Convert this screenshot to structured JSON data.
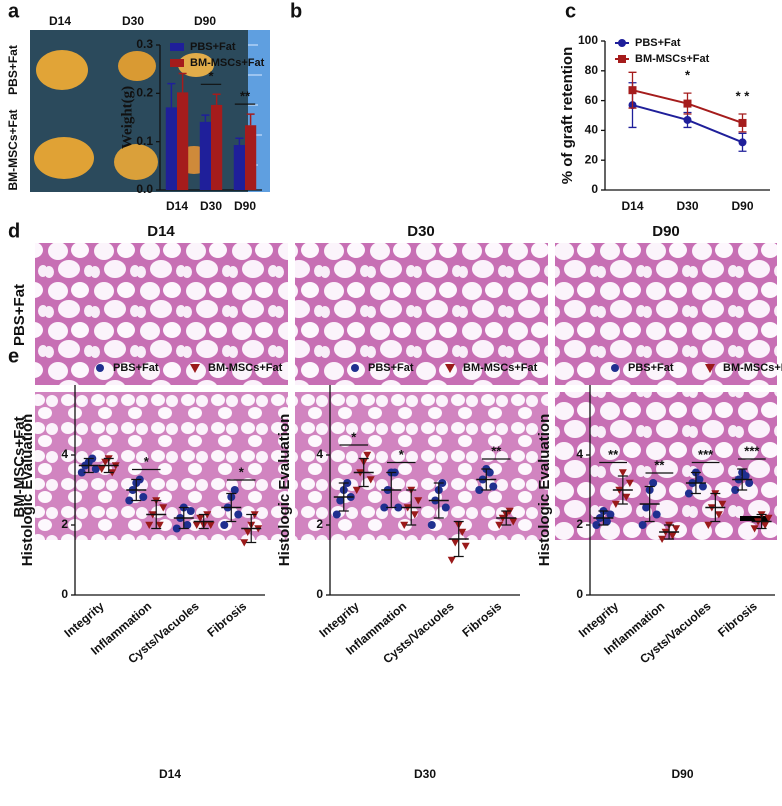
{
  "figure": {
    "panel_labels": [
      "a",
      "b",
      "c",
      "d",
      "e"
    ],
    "photo": {
      "columns": [
        "D14",
        "D30",
        "D90"
      ],
      "rows": [
        "PBS+Fat",
        "BM-MSCs+Fat"
      ]
    },
    "histology": {
      "columns": [
        "D14",
        "D30",
        "D90"
      ],
      "rows": [
        "PBS+Fat",
        "BM-MSCs+Fat"
      ]
    }
  },
  "chart_data": [
    {
      "type": "bar",
      "ylabel": "Weight(g)",
      "categories": [
        "D14",
        "D30",
        "D90"
      ],
      "series": [
        {
          "name": "PBS+Fat",
          "color": "#1f1f9a",
          "values": [
            0.171,
            0.141,
            0.093
          ],
          "error": [
            0.049,
            0.014,
            0.014
          ]
        },
        {
          "name": "BM-MSCs+Fat",
          "color": "#a51c1c",
          "values": [
            0.202,
            0.176,
            0.134
          ],
          "error": [
            0.039,
            0.022,
            0.023
          ]
        }
      ],
      "annotations": [
        null,
        "*",
        "**"
      ],
      "ylim": [
        0,
        0.3
      ],
      "yticks": [
        {
          "value": 0,
          "label": "0.0"
        },
        0.1,
        0.2,
        0.3
      ]
    },
    {
      "type": "line",
      "ylabel": "% of graft retention",
      "categories": [
        "D14",
        "D30",
        "D90"
      ],
      "series": [
        {
          "name": "PBS+Fat",
          "color": "#1f1f9a",
          "marker": "circle",
          "values": [
            57,
            47,
            32
          ],
          "error": [
            15,
            5,
            6
          ]
        },
        {
          "name": "BM-MSCs+Fat",
          "color": "#a51c1c",
          "marker": "square",
          "values": [
            67,
            58,
            45
          ],
          "error": [
            12,
            7,
            6
          ]
        }
      ],
      "annotations": [
        null,
        "*",
        "* *"
      ],
      "ylim": [
        0,
        100
      ],
      "yticks": [
        0,
        20,
        40,
        60,
        80,
        100
      ]
    },
    {
      "type": "dot",
      "xlabel": "D14",
      "ylabel": "Histologic Evaluation",
      "categories": [
        "Integrity",
        "Inflammation",
        "Cysts/Vacuoles",
        "Fibrosis"
      ],
      "series": [
        {
          "name": "PBS+Fat",
          "color": "#1f2f8f",
          "marker": "circle",
          "values": [
            [
              3.5,
              3.7,
              3.8,
              3.9,
              3.6
            ],
            [
              2.7,
              3.0,
              3.2,
              3.3,
              2.8
            ],
            [
              1.9,
              2.2,
              2.5,
              2.0,
              2.4
            ],
            [
              2.0,
              2.5,
              2.8,
              3.0,
              2.3
            ]
          ],
          "mean": [
            3.7,
            3.0,
            2.2,
            2.5
          ],
          "sd": [
            0.2,
            0.3,
            0.3,
            0.4
          ]
        },
        {
          "name": "BM-MSCs+Fat",
          "color": "#9a1a1a",
          "marker": "triangle",
          "values": [
            [
              3.6,
              3.8,
              3.9,
              3.5,
              3.7
            ],
            [
              2.0,
              2.3,
              2.7,
              2.0,
              2.5
            ],
            [
              2.0,
              2.2,
              2.0,
              2.3,
              2.0
            ],
            [
              1.5,
              1.8,
              2.0,
              2.3,
              1.9
            ]
          ],
          "mean": [
            3.7,
            2.3,
            2.1,
            1.9
          ],
          "sd": [
            0.2,
            0.4,
            0.2,
            0.4
          ]
        }
      ],
      "annotations": [
        null,
        "*",
        null,
        "*"
      ],
      "ylim": [
        0,
        6
      ],
      "yticks": [
        0,
        2,
        4
      ]
    },
    {
      "type": "dot",
      "xlabel": "D30",
      "ylabel": "Histologic Evaluation",
      "categories": [
        "Integrity",
        "Inflammation",
        "Cysts/Vacuoles",
        "Fibrosis"
      ],
      "series": [
        {
          "name": "PBS+Fat",
          "color": "#1f2f8f",
          "marker": "circle",
          "values": [
            [
              2.3,
              2.7,
              3.0,
              3.2,
              2.8
            ],
            [
              2.5,
              3.0,
              3.5,
              3.5,
              2.5
            ],
            [
              2.0,
              2.7,
              3.0,
              3.2,
              2.5
            ],
            [
              3.0,
              3.3,
              3.6,
              3.5,
              3.1
            ]
          ],
          "mean": [
            2.8,
            3.0,
            2.7,
            3.3
          ],
          "sd": [
            0.4,
            0.5,
            0.5,
            0.3
          ]
        },
        {
          "name": "BM-MSCs+Fat",
          "color": "#9a1a1a",
          "marker": "triangle",
          "values": [
            [
              3.0,
              3.5,
              3.8,
              4.0,
              3.3
            ],
            [
              2.0,
              2.5,
              3.0,
              2.3,
              2.7
            ],
            [
              1.0,
              1.5,
              2.0,
              1.8,
              1.4
            ],
            [
              2.0,
              2.2,
              2.3,
              2.4,
              2.1
            ]
          ],
          "mean": [
            3.5,
            2.5,
            1.6,
            2.2
          ],
          "sd": [
            0.4,
            0.5,
            0.5,
            0.2
          ]
        }
      ],
      "annotations": [
        "*",
        "*",
        null,
        "**"
      ],
      "ylim": [
        0,
        6
      ],
      "yticks": [
        0,
        2,
        4
      ]
    },
    {
      "type": "dot",
      "xlabel": "D90",
      "ylabel": "Histologic Evaluation",
      "categories": [
        "Integrity",
        "Inflammation",
        "Cysts/Vacuoles",
        "Fibrosis"
      ],
      "series": [
        {
          "name": "PBS+Fat",
          "color": "#1f2f8f",
          "marker": "circle",
          "values": [
            [
              2.0,
              2.2,
              2.4,
              2.1,
              2.3
            ],
            [
              2.0,
              2.5,
              3.0,
              3.2,
              2.3
            ],
            [
              2.9,
              3.2,
              3.5,
              3.3,
              3.1
            ],
            [
              3.0,
              3.3,
              3.5,
              3.4,
              3.2
            ]
          ],
          "mean": [
            2.2,
            2.6,
            3.2,
            3.3
          ],
          "sd": [
            0.2,
            0.5,
            0.3,
            0.3
          ]
        },
        {
          "name": "BM-MSCs+Fat",
          "color": "#9a1a1a",
          "marker": "triangle",
          "values": [
            [
              2.6,
              3.0,
              3.5,
              2.8,
              3.2
            ],
            [
              1.6,
              1.8,
              2.0,
              1.7,
              1.9
            ],
            [
              2.0,
              2.5,
              2.9,
              2.3,
              2.6
            ],
            [
              1.9,
              2.1,
              2.3,
              2.0,
              2.2
            ]
          ],
          "mean": [
            3.0,
            1.8,
            2.5,
            2.1
          ],
          "sd": [
            0.4,
            0.2,
            0.4,
            0.2
          ]
        }
      ],
      "annotations": [
        "**",
        "**",
        "***",
        "***"
      ],
      "ylim": [
        0,
        6
      ],
      "yticks": [
        0,
        2,
        4
      ]
    }
  ]
}
